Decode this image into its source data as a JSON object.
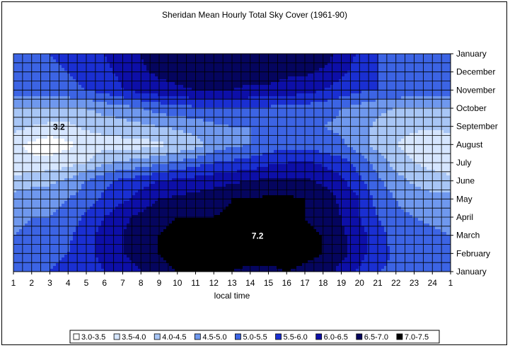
{
  "chart_data": {
    "type": "heatmap",
    "title": "Sheridan Mean Hourly Total Sky Cover (1961-90)",
    "xlabel": "local time",
    "ylabel": "",
    "x_ticks": [
      "1",
      "2",
      "3",
      "4",
      "5",
      "6",
      "7",
      "8",
      "9",
      "10",
      "11",
      "12",
      "13",
      "14",
      "15",
      "16",
      "17",
      "18",
      "19",
      "20",
      "21",
      "22",
      "23",
      "24",
      "1"
    ],
    "y_ticks": [
      "January",
      "February",
      "March",
      "April",
      "May",
      "June",
      "July",
      "August",
      "September",
      "October",
      "November",
      "December",
      "January"
    ],
    "legend_position": "bottom",
    "grid": true,
    "bins": [
      {
        "label": "3.0-3.5",
        "min": 3.0,
        "max": 3.5,
        "color": "#ffffff"
      },
      {
        "label": "3.5-4.0",
        "min": 3.5,
        "max": 4.0,
        "color": "#d6e6ff"
      },
      {
        "label": "4.0-4.5",
        "min": 4.0,
        "max": 4.5,
        "color": "#a8c6f6"
      },
      {
        "label": "4.5-5.0",
        "min": 4.5,
        "max": 5.0,
        "color": "#6f98ee"
      },
      {
        "label": "5.0-5.5",
        "min": 5.0,
        "max": 5.5,
        "color": "#3c64e4"
      },
      {
        "label": "5.5-6.0",
        "min": 5.5,
        "max": 6.0,
        "color": "#1a2fd2"
      },
      {
        "label": "6.0-6.5",
        "min": 6.0,
        "max": 6.5,
        "color": "#0d0fa8"
      },
      {
        "label": "6.5-7.0",
        "min": 6.5,
        "max": 7.0,
        "color": "#05055e"
      },
      {
        "label": "7.0-7.5",
        "min": 7.0,
        "max": 7.5,
        "color": "#000000"
      }
    ],
    "annotations": [
      {
        "text": "3.2",
        "hour": 3.5,
        "month": 8.0
      },
      {
        "text": "7.2",
        "hour": 14.4,
        "month": 2.0
      }
    ],
    "rows": [
      {
        "month": "January",
        "values": [
          5.3,
          5.4,
          5.5,
          5.6,
          5.7,
          6.0,
          6.2,
          6.5,
          6.9,
          7.0,
          7.0,
          7.0,
          7.0,
          6.9,
          6.9,
          7.0,
          6.9,
          6.8,
          6.3,
          5.9,
          5.5,
          5.4,
          5.3,
          5.3,
          5.3
        ]
      },
      {
        "month": "February",
        "values": [
          5.2,
          5.3,
          5.4,
          5.5,
          5.8,
          6.2,
          6.5,
          6.8,
          7.0,
          7.1,
          7.2,
          7.2,
          7.2,
          7.2,
          7.2,
          7.2,
          7.1,
          7.0,
          6.7,
          6.2,
          5.7,
          5.4,
          5.3,
          5.2,
          5.2
        ]
      },
      {
        "month": "March",
        "values": [
          5.0,
          5.2,
          5.3,
          5.4,
          5.8,
          6.2,
          6.5,
          6.8,
          7.0,
          7.1,
          7.1,
          7.1,
          7.2,
          7.2,
          7.2,
          7.1,
          7.1,
          7.0,
          6.6,
          6.2,
          5.7,
          5.3,
          5.2,
          5.1,
          5.0
        ]
      },
      {
        "month": "April",
        "values": [
          4.8,
          5.0,
          5.0,
          5.2,
          5.6,
          6.0,
          6.4,
          6.6,
          6.9,
          7.0,
          7.0,
          7.0,
          7.1,
          7.1,
          7.1,
          7.1,
          7.0,
          6.8,
          6.5,
          6.0,
          5.5,
          5.1,
          5.0,
          4.9,
          4.8
        ]
      },
      {
        "month": "May",
        "values": [
          4.7,
          4.8,
          4.8,
          5.0,
          5.3,
          5.6,
          5.9,
          6.2,
          6.5,
          6.6,
          6.7,
          6.8,
          7.0,
          7.0,
          7.1,
          7.1,
          7.0,
          6.8,
          6.4,
          6.0,
          5.3,
          5.0,
          4.8,
          4.6,
          4.7
        ]
      },
      {
        "month": "June",
        "values": [
          4.2,
          4.3,
          4.4,
          4.6,
          5.0,
          5.4,
          5.6,
          5.8,
          6.0,
          6.1,
          6.2,
          6.3,
          6.4,
          6.5,
          6.6,
          6.6,
          6.6,
          6.4,
          6.1,
          5.6,
          5.1,
          4.7,
          4.4,
          4.3,
          4.2
        ]
      },
      {
        "month": "July",
        "values": [
          3.6,
          3.6,
          3.7,
          3.8,
          4.0,
          4.4,
          4.6,
          4.7,
          4.9,
          5.1,
          5.3,
          5.5,
          5.6,
          5.7,
          5.9,
          6.0,
          6.1,
          5.9,
          5.7,
          5.3,
          4.8,
          4.3,
          4.0,
          3.8,
          3.6
        ]
      },
      {
        "month": "August",
        "values": [
          3.6,
          3.4,
          3.2,
          3.4,
          3.7,
          3.8,
          3.8,
          3.8,
          3.9,
          4.1,
          4.3,
          4.7,
          4.9,
          5.0,
          5.2,
          5.3,
          5.3,
          5.2,
          5.1,
          4.7,
          4.3,
          4.0,
          3.8,
          3.6,
          3.6
        ]
      },
      {
        "month": "September",
        "values": [
          4.2,
          4.0,
          3.9,
          3.9,
          4.1,
          4.2,
          4.3,
          4.4,
          4.5,
          4.6,
          4.7,
          4.9,
          5.0,
          5.0,
          5.1,
          5.1,
          5.0,
          5.0,
          4.9,
          4.7,
          4.4,
          4.2,
          4.1,
          4.1,
          4.2
        ]
      },
      {
        "month": "October",
        "values": [
          4.5,
          4.5,
          4.4,
          4.4,
          4.5,
          4.7,
          4.8,
          5.0,
          5.2,
          5.3,
          5.4,
          5.4,
          5.5,
          5.4,
          5.4,
          5.3,
          5.3,
          5.2,
          5.0,
          4.8,
          4.6,
          4.5,
          4.4,
          4.4,
          4.5
        ]
      },
      {
        "month": "November",
        "values": [
          5.3,
          5.3,
          5.3,
          5.4,
          5.5,
          5.7,
          6.0,
          6.2,
          6.3,
          6.4,
          6.5,
          6.5,
          6.5,
          6.4,
          6.4,
          6.3,
          6.2,
          6.0,
          5.8,
          5.6,
          5.5,
          5.4,
          5.3,
          5.3,
          5.3
        ]
      },
      {
        "month": "December",
        "values": [
          5.4,
          5.4,
          5.4,
          5.5,
          5.6,
          5.9,
          6.1,
          6.4,
          6.6,
          6.7,
          6.8,
          6.8,
          6.8,
          6.7,
          6.7,
          6.6,
          6.6,
          6.4,
          6.1,
          5.8,
          5.5,
          5.3,
          5.4,
          5.4,
          5.4
        ]
      },
      {
        "month": "January",
        "values": [
          5.3,
          5.4,
          5.5,
          5.6,
          5.7,
          6.0,
          6.2,
          6.5,
          6.9,
          7.0,
          7.0,
          7.0,
          7.0,
          6.9,
          6.9,
          7.0,
          6.9,
          6.8,
          6.3,
          5.9,
          5.5,
          5.4,
          5.3,
          5.3,
          5.3
        ]
      }
    ]
  }
}
